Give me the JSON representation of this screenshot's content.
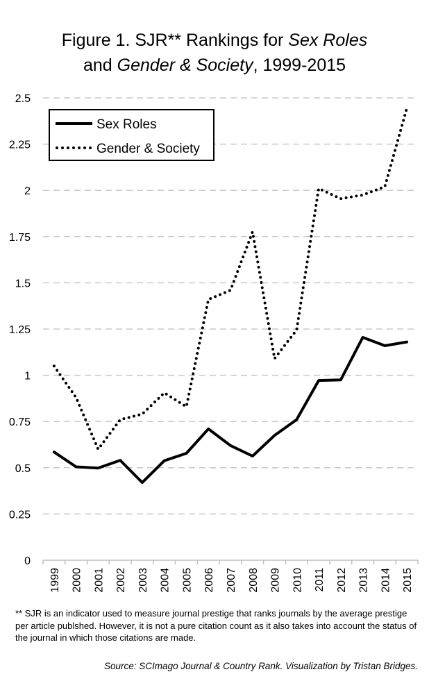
{
  "title": {
    "prefix": "Figure 1. SJR** Rankings for ",
    "journal1": "Sex Roles",
    "line2_and": "and ",
    "journal2": "Gender & Society",
    "suffix": ", 1999-2015"
  },
  "chart_data": {
    "type": "line",
    "title": "Figure 1. SJR** Rankings for Sex Roles and Gender & Society, 1999-2015",
    "xlabel": "",
    "ylabel": "",
    "ylim": [
      0,
      2.5
    ],
    "grid": true,
    "legend_position": "top-left",
    "x": [
      "1999",
      "2000",
      "2001",
      "2002",
      "2003",
      "2004",
      "2005",
      "2006",
      "2007",
      "2008",
      "2009",
      "2010",
      "2011",
      "2012",
      "2013",
      "2014",
      "2015"
    ],
    "yticks": [
      "0",
      "0.25",
      "0.5",
      "0.75",
      "1",
      "1.25",
      "1.5",
      "1.75",
      "2",
      "2.25",
      "2.5"
    ],
    "series": [
      {
        "name": "Sex Roles",
        "style": "solid",
        "values": [
          0.585,
          0.505,
          0.498,
          0.54,
          0.42,
          0.538,
          0.578,
          0.71,
          0.62,
          0.563,
          0.675,
          0.76,
          0.972,
          0.975,
          1.205,
          1.16,
          1.18
        ]
      },
      {
        "name": "Gender & Society",
        "style": "dotted",
        "values": [
          1.05,
          0.88,
          0.6,
          0.76,
          0.79,
          0.905,
          0.83,
          1.41,
          1.46,
          1.775,
          1.09,
          1.245,
          2.01,
          1.955,
          1.975,
          2.02,
          2.445
        ]
      }
    ]
  },
  "footnote": "** SJR is an indicator used to measure journal prestige that ranks journals by the average prestige per article publshed.  However, it is not a pure citation count as it also takes into account the status of the journal in which those citations are made.",
  "source": "Source: SCImago Journal & Country Rank.  Visualization by Tristan Bridges.",
  "colors": {
    "line": "#000000",
    "grid": "#c8c8c8",
    "axis": "#bfbfbf"
  }
}
